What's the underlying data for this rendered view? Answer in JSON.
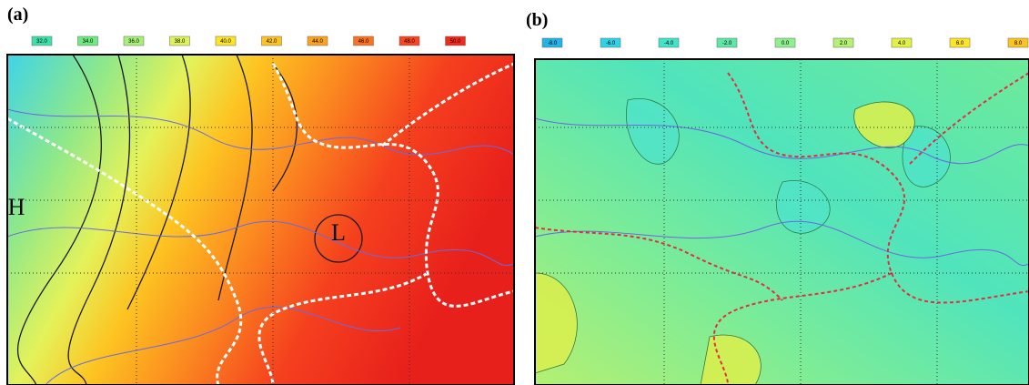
{
  "panels": [
    {
      "label": "(a)",
      "legend": [
        {
          "label": "32.0",
          "color": "#3fe0a8"
        },
        {
          "label": "34.0",
          "color": "#6fea80"
        },
        {
          "label": "36.0",
          "color": "#a6f07a"
        },
        {
          "label": "38.0",
          "color": "#def25a"
        },
        {
          "label": "40.0",
          "color": "#fde424"
        },
        {
          "label": "42.0",
          "color": "#fdc421"
        },
        {
          "label": "44.0",
          "color": "#fca21f"
        },
        {
          "label": "46.0",
          "color": "#fb7220"
        },
        {
          "label": "48.0",
          "color": "#f84420"
        },
        {
          "label": "50.0",
          "color": "#f22a1e"
        }
      ],
      "map_labels": [
        "H",
        "L"
      ]
    },
    {
      "label": "(b)",
      "legend": [
        {
          "label": "-8.0",
          "color": "#22b4e6"
        },
        {
          "label": "-6.0",
          "color": "#30d2e6"
        },
        {
          "label": "-4.0",
          "color": "#40e4c8"
        },
        {
          "label": "-2.0",
          "color": "#5ee8a6"
        },
        {
          "label": "0.0",
          "color": "#8ef08e"
        },
        {
          "label": "2.0",
          "color": "#b4f072"
        },
        {
          "label": "4.0",
          "color": "#e2f244"
        },
        {
          "label": "6.0",
          "color": "#fde424"
        },
        {
          "label": "8.0",
          "color": "#fdc421"
        }
      ]
    }
  ]
}
